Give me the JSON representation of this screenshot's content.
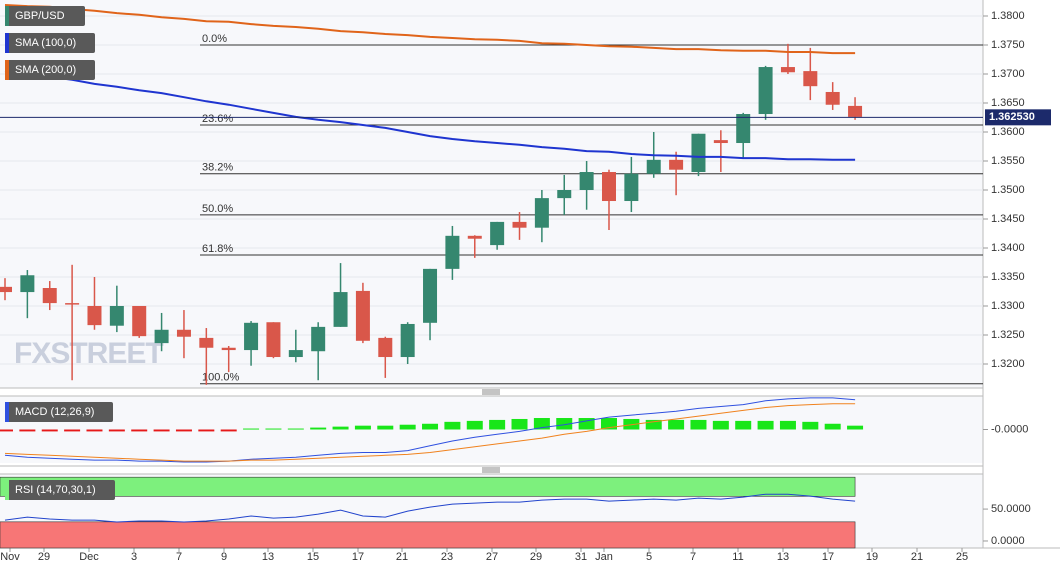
{
  "chart_data": [
    {
      "type": "candlestick",
      "title": "GBP/USD",
      "watermark": "FXSTREET",
      "up_color": "#35876f",
      "down_color": "#d9574a",
      "open": [
        1.3333,
        1.3324,
        1.3331,
        1.3305,
        1.33,
        1.3266,
        1.33,
        1.3236,
        1.3259,
        1.3245,
        1.3228,
        1.3224,
        1.3272,
        1.3212,
        1.3222,
        1.3264,
        1.3326,
        1.3245,
        1.3212,
        1.3271,
        1.3364,
        1.3421,
        1.3405,
        1.3445,
        1.3435,
        1.3486,
        1.35,
        1.3531,
        1.3481,
        1.3528,
        1.3552,
        1.3531,
        1.3586,
        1.3581,
        1.3631,
        1.3712,
        1.3705,
        1.3669,
        1.3645
      ],
      "high": [
        1.3348,
        1.3362,
        1.3343,
        1.3371,
        1.335,
        1.3335,
        1.33,
        1.3288,
        1.3293,
        1.3262,
        1.3231,
        1.3274,
        1.3272,
        1.3259,
        1.3272,
        1.3374,
        1.334,
        1.3247,
        1.3272,
        1.3364,
        1.3438,
        1.3422,
        1.3445,
        1.3462,
        1.35,
        1.3526,
        1.355,
        1.3535,
        1.3557,
        1.36,
        1.3566,
        1.3597,
        1.3603,
        1.3633,
        1.3714,
        1.3752,
        1.3745,
        1.3686,
        1.366
      ],
      "low": [
        1.331,
        1.3279,
        1.3293,
        1.3172,
        1.3259,
        1.3255,
        1.3245,
        1.3222,
        1.321,
        1.3164,
        1.3186,
        1.3197,
        1.321,
        1.3203,
        1.3172,
        1.3264,
        1.3236,
        1.3176,
        1.32,
        1.3241,
        1.3345,
        1.3383,
        1.3397,
        1.3414,
        1.341,
        1.3457,
        1.3466,
        1.3431,
        1.3462,
        1.3521,
        1.3491,
        1.3524,
        1.3531,
        1.3555,
        1.3621,
        1.37,
        1.3655,
        1.3638,
        1.3621
      ],
      "close": [
        1.3324,
        1.3353,
        1.3305,
        1.3303,
        1.3267,
        1.33,
        1.3248,
        1.3259,
        1.3247,
        1.3228,
        1.3224,
        1.3271,
        1.3212,
        1.3224,
        1.3264,
        1.3324,
        1.324,
        1.3212,
        1.3269,
        1.3364,
        1.3421,
        1.3416,
        1.3445,
        1.3435,
        1.3486,
        1.35,
        1.3531,
        1.3481,
        1.3528,
        1.3552,
        1.3535,
        1.3597,
        1.3581,
        1.3631,
        1.3712,
        1.3703,
        1.3679,
        1.3647,
        1.3626
      ],
      "series": [
        {
          "name": "SMA (100,0)",
          "color": "#1f35d0",
          "values": [
            1.3705,
            1.37,
            1.3695,
            1.369,
            1.3683,
            1.3678,
            1.3672,
            1.3667,
            1.366,
            1.3653,
            1.3647,
            1.364,
            1.3633,
            1.3626,
            1.3621,
            1.3617,
            1.3612,
            1.3607,
            1.36,
            1.3593,
            1.3588,
            1.3584,
            1.3581,
            1.3578,
            1.3574,
            1.3571,
            1.3567,
            1.3566,
            1.3562,
            1.356,
            1.3559,
            1.3557,
            1.3557,
            1.3555,
            1.3555,
            1.3553,
            1.3553,
            1.3552,
            1.3552
          ]
        },
        {
          "name": "SMA (200,0)",
          "color": "#e0641a",
          "values": [
            1.3819,
            1.3817,
            1.3816,
            1.3812,
            1.3809,
            1.3805,
            1.3802,
            1.3798,
            1.3795,
            1.3791,
            1.379,
            1.3786,
            1.3783,
            1.3781,
            1.3778,
            1.3774,
            1.3772,
            1.3769,
            1.3767,
            1.3764,
            1.3762,
            1.376,
            1.3759,
            1.3757,
            1.3753,
            1.3752,
            1.375,
            1.3748,
            1.3747,
            1.3745,
            1.3743,
            1.3743,
            1.3741,
            1.374,
            1.374,
            1.3738,
            1.3738,
            1.3736,
            1.3736
          ]
        }
      ],
      "fib_levels": [
        {
          "label": "0.0%",
          "value": 1.375
        },
        {
          "label": "23.6%",
          "value": 1.3612
        },
        {
          "label": "38.2%",
          "value": 1.3528
        },
        {
          "label": "50.0%",
          "value": 1.3457
        },
        {
          "label": "61.8%",
          "value": 1.3388
        },
        {
          "label": "100.0%",
          "value": 1.3166
        }
      ],
      "last_price": {
        "value": 1.36253,
        "label": "1.362530"
      },
      "ylim": [
        1.31586,
        1.38276
      ],
      "yticks": [
        {
          "value": 1.38,
          "label": "1.3800"
        },
        {
          "value": 1.375,
          "label": "1.3750"
        },
        {
          "value": 1.37,
          "label": "1.3700"
        },
        {
          "value": 1.365,
          "label": "1.3650"
        },
        {
          "value": 1.36,
          "label": "1.3600"
        },
        {
          "value": 1.355,
          "label": "1.3550"
        },
        {
          "value": 1.35,
          "label": "1.3500"
        },
        {
          "value": 1.345,
          "label": "1.3450"
        },
        {
          "value": 1.34,
          "label": "1.3400"
        },
        {
          "value": 1.335,
          "label": "1.3350"
        },
        {
          "value": 1.33,
          "label": "1.3300"
        },
        {
          "value": 1.325,
          "label": "1.3250"
        },
        {
          "value": 1.32,
          "label": "1.3200"
        }
      ],
      "grid": true,
      "x_labels": [
        "Nov",
        "29",
        "Dec",
        "3",
        "7",
        "9",
        "13",
        "15",
        "17",
        "21",
        "23",
        "27",
        "29",
        "31",
        "Jan",
        "5",
        "7",
        "11",
        "13",
        "17",
        "19",
        "21",
        "25"
      ]
    },
    {
      "type": "macd",
      "title": "MACD (12,26,9)",
      "series": [
        {
          "color": "#2f50e0",
          "values": [
            -0.0054,
            -0.0058,
            -0.006,
            -0.0062,
            -0.0064,
            -0.0064,
            -0.0066,
            -0.0066,
            -0.0068,
            -0.0068,
            -0.0066,
            -0.0062,
            -0.006,
            -0.0058,
            -0.0054,
            -0.005,
            -0.0048,
            -0.0048,
            -0.0044,
            -0.0034,
            -0.0024,
            -0.0016,
            -0.001,
            -0.0004,
            0.0004,
            0.001,
            0.0018,
            0.0026,
            0.003,
            0.0034,
            0.0038,
            0.0044,
            0.0048,
            0.0052,
            0.006,
            0.0064,
            0.0066,
            0.0066,
            0.0062
          ]
        },
        {
          "color": "#f0821e",
          "values": [
            -0.005,
            -0.0052,
            -0.0054,
            -0.0056,
            -0.0058,
            -0.006,
            -0.0062,
            -0.0064,
            -0.0066,
            -0.0066,
            -0.0066,
            -0.0064,
            -0.0064,
            -0.0062,
            -0.006,
            -0.0058,
            -0.0056,
            -0.0054,
            -0.0052,
            -0.0048,
            -0.0042,
            -0.0036,
            -0.003,
            -0.0024,
            -0.0018,
            -0.001,
            -0.0004,
            0.0004,
            0.001,
            0.0016,
            0.0022,
            0.0028,
            0.0034,
            0.004,
            0.0046,
            0.005,
            0.0052,
            0.0054,
            0.0054
          ]
        }
      ],
      "histogram": {
        "up_color": "#19e619",
        "down_color": "#e61919",
        "values": [
          -0.0004,
          -0.0004,
          -0.0004,
          -0.0004,
          -0.0004,
          -0.0004,
          -0.0004,
          -0.0004,
          -0.0004,
          -0.0004,
          -0.0004,
          0.0002,
          0.0002,
          0.0002,
          0.0004,
          0.0006,
          0.0008,
          0.0008,
          0.001,
          0.0012,
          0.0016,
          0.0018,
          0.002,
          0.0022,
          0.0024,
          0.0024,
          0.0024,
          0.0024,
          0.0022,
          0.002,
          0.002,
          0.002,
          0.0018,
          0.0018,
          0.0018,
          0.0018,
          0.0016,
          0.0012,
          0.0008
        ]
      },
      "ylim": [
        -0.007,
        0.007
      ],
      "yticks": [
        {
          "value": 0,
          "label": "-0.0000"
        }
      ]
    },
    {
      "type": "rsi",
      "title": "RSI (14,70,30,1)",
      "color": "#2244cc",
      "values": [
        32.8,
        37.5,
        34.4,
        32.8,
        32.8,
        29.7,
        31.3,
        31.3,
        29.7,
        31.3,
        34.4,
        39.1,
        35.9,
        37.5,
        42.2,
        48.4,
        39.1,
        37.5,
        46.9,
        53.1,
        57.8,
        59.4,
        60.9,
        60.9,
        64.1,
        65.6,
        65.6,
        62.5,
        64.1,
        65.6,
        64.1,
        67.2,
        65.6,
        68.8,
        73.4,
        73.4,
        70.3,
        65.6,
        62.5
      ],
      "overbought": 70,
      "oversold": 30,
      "band_top": 100,
      "overbought_color": "#7df07d",
      "oversold_color": "#f77676",
      "ylim": [
        -11,
        105
      ],
      "yticks": [
        {
          "value": 50,
          "label": "50.0000"
        },
        {
          "value": 0,
          "label": "0.0000"
        }
      ]
    }
  ]
}
